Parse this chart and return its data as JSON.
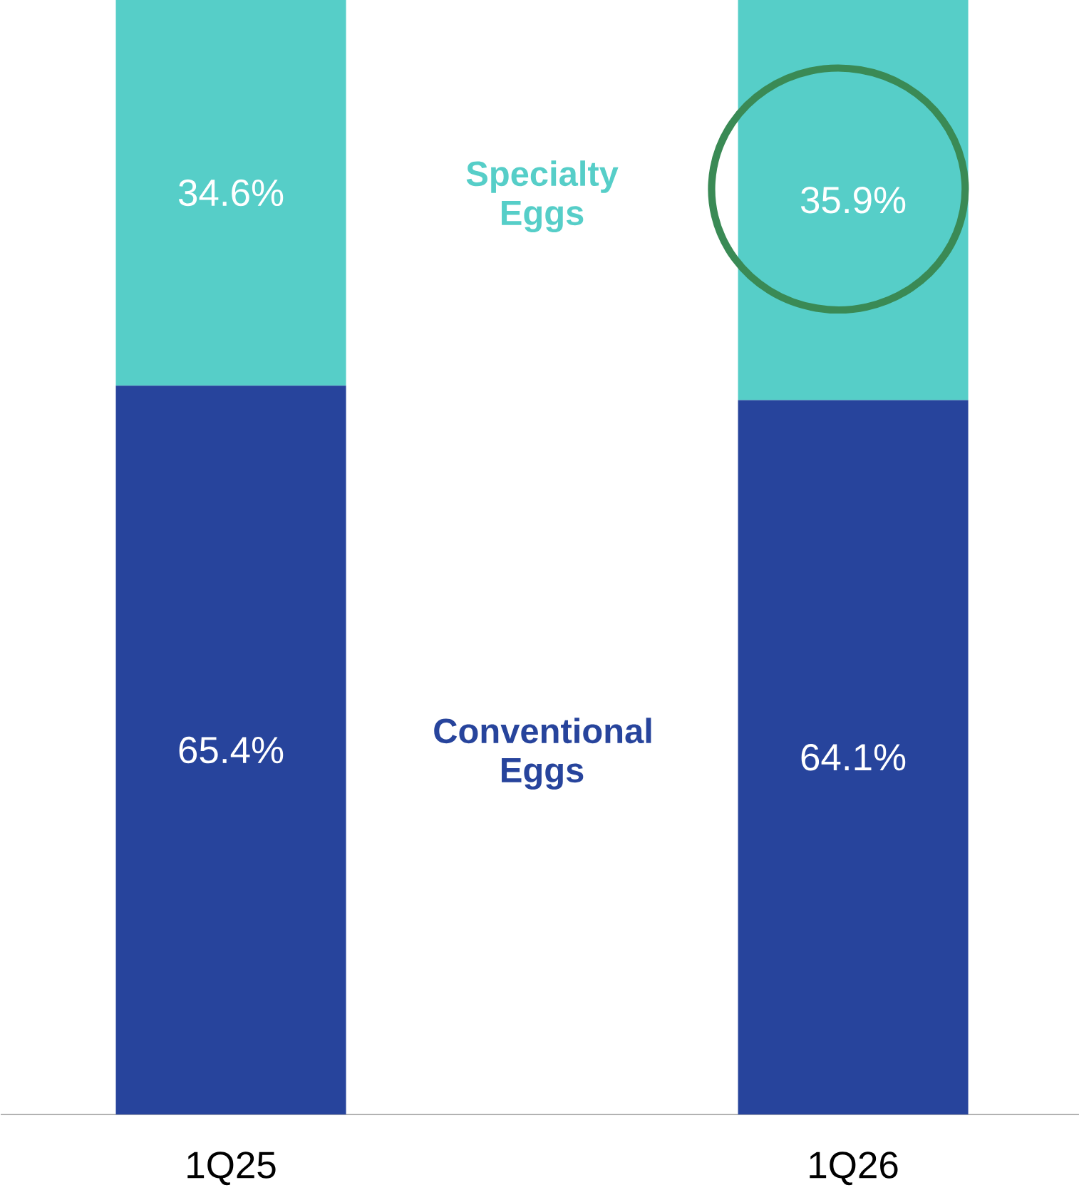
{
  "chart_data": {
    "type": "bar",
    "stacked": true,
    "categories": [
      "1Q25",
      "1Q26"
    ],
    "series": [
      {
        "name": "Conventional Eggs",
        "color": "#27449c",
        "values": [
          65.4,
          64.1
        ],
        "value_labels": [
          "65.4%",
          "64.1%"
        ]
      },
      {
        "name": "Specialty Eggs",
        "color": "#56cec8",
        "values": [
          34.6,
          35.9
        ],
        "value_labels": [
          "34.6%",
          "35.9%"
        ]
      }
    ]
  }
}
